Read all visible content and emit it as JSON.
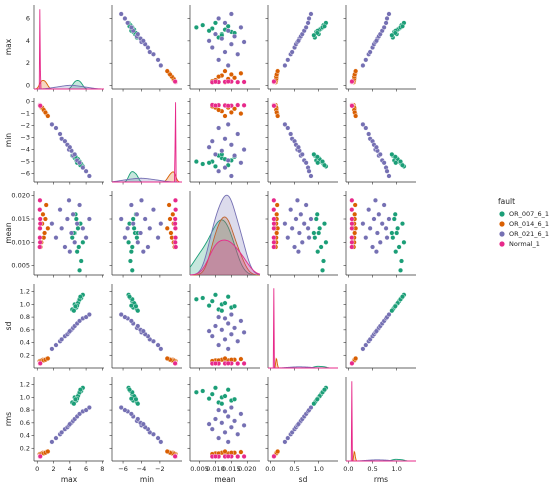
{
  "chart_data": {
    "type": "pairplot",
    "legend_title": "fault",
    "variables": [
      {
        "name": "max",
        "lim": [
          -0.4,
          8.2
        ],
        "xticks": [
          0,
          2,
          4,
          6,
          8
        ],
        "yticks": [
          0,
          2,
          4,
          6
        ],
        "ylim": [
          -0.3,
          7.2
        ]
      },
      {
        "name": "min",
        "lim": [
          -7.2,
          0.4
        ],
        "xticks": [
          {
            "value": -6,
            "label": "−6"
          },
          {
            "value": -4,
            "label": "−4"
          },
          {
            "value": -2,
            "label": "−2"
          }
        ],
        "yticks": [
          0,
          {
            "value": -1,
            "label": "−1"
          },
          {
            "value": -2,
            "label": "−2"
          },
          {
            "value": -3,
            "label": "−3"
          },
          {
            "value": -4,
            "label": "−4"
          },
          {
            "value": -5,
            "label": "−5"
          },
          {
            "value": -6,
            "label": "−6"
          }
        ],
        "ylim": [
          -6.7,
          0.3
        ]
      },
      {
        "name": "mean",
        "lim": [
          0.002,
          0.024
        ],
        "xticks": [
          0.005,
          {
            "value": 0.01,
            "label": "0.010"
          },
          0.015,
          {
            "value": 0.02,
            "label": "0.020"
          }
        ],
        "yticks": [
          0.005,
          {
            "value": 0.01,
            "label": "0.010"
          },
          0.015,
          {
            "value": 0.02,
            "label": "0.020"
          }
        ],
        "ylim": [
          0.003,
          0.021
        ]
      },
      {
        "name": "sd",
        "lim": [
          -0.05,
          1.4
        ],
        "xticks": [
          {
            "value": 0,
            "label": "0.0"
          },
          0.5,
          {
            "value": 1,
            "label": "1.0"
          }
        ],
        "yticks": [
          0.2,
          0.4,
          0.6,
          0.8,
          {
            "value": 1,
            "label": "1.0"
          },
          1.2
        ],
        "ylim": [
          0.0,
          1.32
        ]
      },
      {
        "name": "rms",
        "lim": [
          -0.05,
          1.4
        ],
        "xticks": [
          {
            "value": 0,
            "label": "0.0"
          },
          0.5,
          {
            "value": 1,
            "label": "1.0"
          }
        ],
        "yticks": [
          0.2,
          0.4,
          0.6,
          0.8,
          {
            "value": 1,
            "label": "1.0"
          },
          1.2
        ],
        "ylim": [
          0.0,
          1.32
        ]
      }
    ],
    "series": [
      {
        "name": "OR_007_6_1",
        "color": "#1b9e77",
        "values": {
          "max": [
            4.6,
            5.1,
            4.8,
            5.4,
            4.3,
            5.0,
            4.9,
            5.6,
            4.7,
            5.2,
            4.5,
            5.3
          ],
          "min": [
            -4.7,
            -5.0,
            -4.9,
            -5.2,
            -4.5,
            -4.8,
            -5.1,
            -5.4,
            -4.6,
            -5.0,
            -4.4,
            -5.3
          ],
          "mean": [
            0.012,
            0.009,
            0.015,
            0.006,
            0.011,
            0.013,
            0.008,
            0.01,
            0.016,
            0.004,
            0.012,
            0.014
          ],
          "sd": [
            1.0,
            1.05,
            0.95,
            1.1,
            0.92,
            1.02,
            0.98,
            1.15,
            0.97,
            1.08,
            0.9,
            1.12
          ],
          "rms": [
            1.0,
            1.05,
            0.95,
            1.1,
            0.92,
            1.02,
            0.98,
            1.15,
            0.97,
            1.08,
            0.9,
            1.12
          ]
        }
      },
      {
        "name": "OR_014_6_1",
        "color": "#d95f02",
        "values": {
          "max": [
            0.3,
            0.5,
            0.7,
            0.9,
            1.1,
            0.4,
            0.6,
            0.8,
            1.0,
            1.3
          ],
          "min": [
            -0.3,
            -0.5,
            -0.6,
            -0.8,
            -1.0,
            -0.4,
            -0.5,
            -0.7,
            -0.9,
            -1.2
          ],
          "mean": [
            0.013,
            0.01,
            0.016,
            0.012,
            0.018,
            0.009,
            0.014,
            0.011,
            0.015,
            0.013
          ],
          "sd": [
            0.11,
            0.12,
            0.13,
            0.13,
            0.14,
            0.11,
            0.12,
            0.12,
            0.13,
            0.15
          ],
          "rms": [
            0.11,
            0.12,
            0.13,
            0.13,
            0.14,
            0.11,
            0.12,
            0.12,
            0.13,
            0.15
          ]
        }
      },
      {
        "name": "OR_021_6_1",
        "color": "#7570b3",
        "values": {
          "max": [
            1.8,
            2.3,
            2.8,
            3.0,
            3.4,
            3.7,
            3.9,
            4.2,
            4.4,
            4.6,
            4.9,
            5.2,
            5.6,
            6.0,
            6.4,
            4.0
          ],
          "min": [
            -1.9,
            -2.2,
            -2.7,
            -3.1,
            -3.3,
            -3.6,
            -4.0,
            -4.1,
            -4.5,
            -4.4,
            -4.9,
            -5.1,
            -5.5,
            -5.8,
            -6.2,
            -3.8
          ],
          "mean": [
            0.014,
            0.011,
            0.017,
            0.013,
            0.009,
            0.015,
            0.019,
            0.012,
            0.016,
            0.01,
            0.014,
            0.018,
            0.013,
            0.011,
            0.015,
            0.008
          ],
          "sd": [
            0.3,
            0.36,
            0.42,
            0.45,
            0.5,
            0.53,
            0.56,
            0.6,
            0.63,
            0.66,
            0.7,
            0.74,
            0.78,
            0.8,
            0.84,
            0.58
          ],
          "rms": [
            0.3,
            0.36,
            0.42,
            0.45,
            0.5,
            0.53,
            0.56,
            0.6,
            0.63,
            0.66,
            0.7,
            0.74,
            0.78,
            0.8,
            0.84,
            0.58
          ]
        }
      },
      {
        "name": "Normal_1",
        "color": "#e7298a",
        "values": {
          "max": [
            0.3,
            0.32,
            0.34,
            0.36,
            0.31,
            0.33,
            0.35,
            0.37
          ],
          "min": [
            -0.28,
            -0.3,
            -0.32,
            -0.34,
            -0.29,
            -0.31,
            -0.33,
            -0.35
          ],
          "mean": [
            0.009,
            0.011,
            0.013,
            0.015,
            0.017,
            0.019,
            0.01,
            0.014
          ],
          "sd": [
            0.07,
            0.07,
            0.071,
            0.072,
            0.07,
            0.071,
            0.072,
            0.073
          ],
          "rms": [
            0.07,
            0.07,
            0.071,
            0.072,
            0.07,
            0.071,
            0.072,
            0.073
          ]
        }
      }
    ]
  }
}
